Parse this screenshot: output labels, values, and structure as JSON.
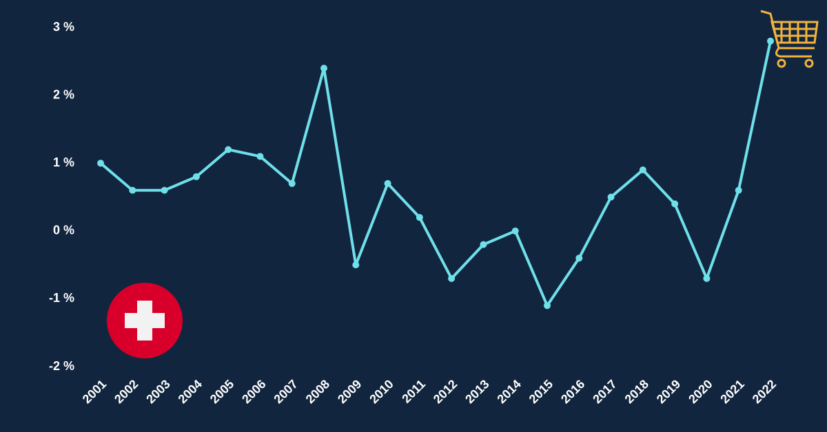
{
  "chart_data": {
    "type": "line",
    "categories": [
      "2001",
      "2002",
      "2003",
      "2004",
      "2005",
      "2006",
      "2007",
      "2008",
      "2009",
      "2010",
      "2011",
      "2012",
      "2013",
      "2014",
      "2015",
      "2016",
      "2017",
      "2018",
      "2019",
      "2020",
      "2021",
      "2022"
    ],
    "series": [
      {
        "color": "#6fe0e9",
        "values": [
          1.0,
          0.6,
          0.6,
          0.8,
          1.2,
          1.1,
          0.7,
          2.4,
          -0.5,
          0.7,
          0.2,
          -0.7,
          -0.2,
          0.0,
          -1.1,
          -0.4,
          0.5,
          0.9,
          0.4,
          -0.7,
          0.6,
          2.8
        ]
      }
    ],
    "ylim": [
      -2,
      3
    ],
    "yticks": [
      {
        "value": -2,
        "label": "-2 %"
      },
      {
        "value": -1,
        "label": "-1 %"
      },
      {
        "value": 0,
        "label": "0 %"
      },
      {
        "value": 1,
        "label": "1 %"
      },
      {
        "value": 2,
        "label": "2 %"
      },
      {
        "value": 3,
        "label": "3 %"
      }
    ],
    "grid": false
  }
}
